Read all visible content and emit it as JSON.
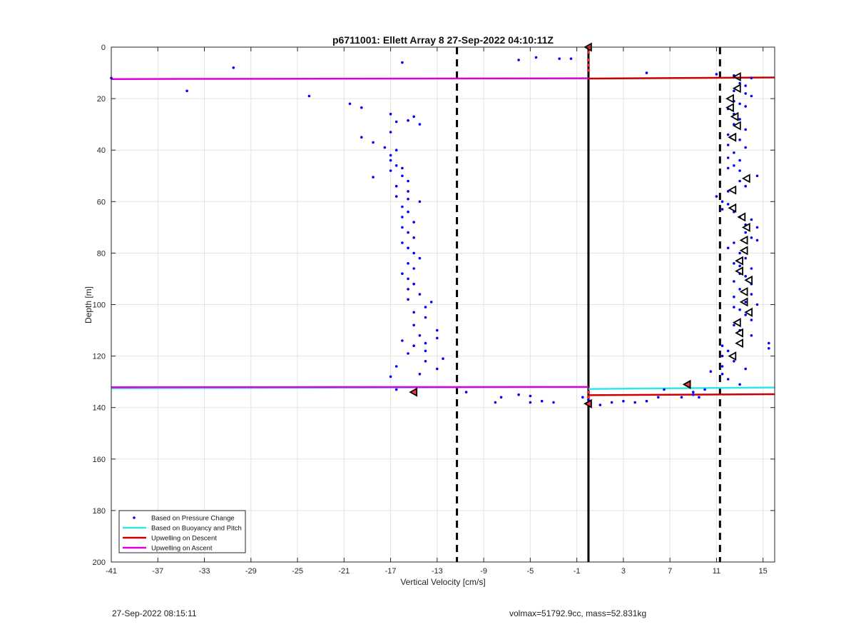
{
  "chart_data": {
    "type": "scatter",
    "title": "p6711001: Ellett Array 8 27-Sep-2022 04:10:11Z",
    "xlabel": "Vertical Velocity [cm/s]",
    "ylabel": "Depth [m]",
    "xlim": [
      -41,
      16
    ],
    "ylim": [
      0,
      200
    ],
    "y_reversed": true,
    "grid": true,
    "xticks": [
      -41,
      -37,
      -33,
      -29,
      -25,
      -21,
      -17,
      -13,
      -9,
      -5,
      -1,
      3,
      7,
      11,
      15
    ],
    "yticks": [
      0,
      20,
      40,
      60,
      80,
      100,
      120,
      140,
      160,
      180,
      200
    ],
    "legend_placement": "bottom-left",
    "legend": [
      {
        "label": "Based on Pressure Change",
        "style": "dots",
        "color": "#0000ff"
      },
      {
        "label": "Based on Buoyancy and Pitch",
        "style": "line",
        "color": "#33e6e6"
      },
      {
        "label": "Upwelling on Descent",
        "style": "line",
        "color": "#cc0000"
      },
      {
        "label": "Upwelling on Ascent",
        "style": "line",
        "color": "#dd00dd"
      }
    ],
    "vertical_lines": [
      {
        "x": 0,
        "style": "solid",
        "color": "#000000"
      },
      {
        "x": -11.3,
        "style": "dashed",
        "color": "#000000"
      },
      {
        "x": 11.3,
        "style": "dashed",
        "color": "#000000"
      }
    ],
    "series": [
      {
        "name": "Based on Pressure Change",
        "color": "#0000ff",
        "points": [
          [
            -41,
            12
          ],
          [
            -30.5,
            8
          ],
          [
            -34.5,
            17
          ],
          [
            -24,
            19
          ],
          [
            -16,
            6
          ],
          [
            -20.5,
            22
          ],
          [
            -19.5,
            23.5
          ],
          [
            -17,
            26
          ],
          [
            -15,
            27
          ],
          [
            -15.5,
            28.5
          ],
          [
            -14.5,
            30
          ],
          [
            -16.5,
            29
          ],
          [
            -17,
            33
          ],
          [
            -19.5,
            35
          ],
          [
            -18.5,
            37
          ],
          [
            -17.5,
            39
          ],
          [
            -16.5,
            40
          ],
          [
            -17,
            42
          ],
          [
            -17,
            44
          ],
          [
            -16.5,
            46
          ],
          [
            -16,
            47
          ],
          [
            -17,
            48
          ],
          [
            -18.5,
            50.5
          ],
          [
            -16,
            50
          ],
          [
            -15.5,
            52
          ],
          [
            -16.5,
            54
          ],
          [
            -15.5,
            56
          ],
          [
            -16.5,
            58
          ],
          [
            -14.5,
            60
          ],
          [
            -15.5,
            59
          ],
          [
            -16,
            62
          ],
          [
            -15.5,
            64
          ],
          [
            -16,
            66
          ],
          [
            -15,
            68
          ],
          [
            -16,
            70
          ],
          [
            -15.5,
            72
          ],
          [
            -15,
            74
          ],
          [
            -16,
            76
          ],
          [
            -15.5,
            78
          ],
          [
            -15,
            80
          ],
          [
            -14.5,
            82
          ],
          [
            -15.5,
            84
          ],
          [
            -15,
            86
          ],
          [
            -16,
            88
          ],
          [
            -15.5,
            90
          ],
          [
            -15,
            92
          ],
          [
            -15.5,
            94
          ],
          [
            -14.5,
            96
          ],
          [
            -15.5,
            98
          ],
          [
            -13.5,
            99
          ],
          [
            -14,
            101
          ],
          [
            -15,
            103
          ],
          [
            -14,
            105
          ],
          [
            -15,
            108
          ],
          [
            -13,
            110
          ],
          [
            -14.5,
            112
          ],
          [
            -16,
            114
          ],
          [
            -13,
            113
          ],
          [
            -14,
            115
          ],
          [
            -15,
            116
          ],
          [
            -14,
            118
          ],
          [
            -15.5,
            119
          ],
          [
            -12.5,
            121
          ],
          [
            -14,
            122
          ],
          [
            -16.5,
            124
          ],
          [
            -13,
            125
          ],
          [
            -14.5,
            127
          ],
          [
            -17,
            128
          ],
          [
            -16.5,
            133
          ],
          [
            -10.5,
            134
          ],
          [
            -8,
            138
          ],
          [
            -7.5,
            136
          ],
          [
            -6,
            135
          ],
          [
            -5,
            135.5
          ],
          [
            -5,
            138
          ],
          [
            -4,
            137.5
          ],
          [
            -3,
            138
          ],
          [
            -0.5,
            136
          ],
          [
            0,
            137
          ],
          [
            1,
            139
          ],
          [
            2,
            138
          ],
          [
            3,
            137.5
          ],
          [
            4,
            138
          ],
          [
            5,
            137.5
          ],
          [
            6,
            136
          ],
          [
            6.5,
            133
          ],
          [
            8,
            136
          ],
          [
            9,
            135
          ],
          [
            9.5,
            136
          ],
          [
            10,
            133
          ],
          [
            10.5,
            126
          ],
          [
            9,
            134
          ],
          [
            -6,
            5
          ],
          [
            -4.5,
            4
          ],
          [
            -2.5,
            4.5
          ],
          [
            -1.5,
            4.5
          ],
          [
            5,
            10
          ],
          [
            11,
            10.5
          ],
          [
            12.5,
            11
          ],
          [
            14,
            12
          ],
          [
            13,
            14
          ],
          [
            13.5,
            15
          ],
          [
            12.5,
            17
          ],
          [
            13.5,
            18
          ],
          [
            14,
            19
          ],
          [
            12.5,
            21
          ],
          [
            13,
            22
          ],
          [
            13.5,
            23
          ],
          [
            12,
            24
          ],
          [
            12.5,
            26
          ],
          [
            13,
            28
          ],
          [
            12.5,
            30
          ],
          [
            13.5,
            32
          ],
          [
            12,
            34
          ],
          [
            13,
            36
          ],
          [
            12,
            38
          ],
          [
            13.5,
            39
          ],
          [
            12.5,
            41
          ],
          [
            12,
            43
          ],
          [
            13,
            44
          ],
          [
            12.5,
            46
          ],
          [
            12,
            47
          ],
          [
            13,
            48
          ],
          [
            14.5,
            50
          ],
          [
            13,
            52
          ],
          [
            13.5,
            54
          ],
          [
            12,
            56
          ],
          [
            11,
            58
          ],
          [
            11.5,
            60
          ],
          [
            12,
            61
          ],
          [
            11.5,
            63
          ],
          [
            12.5,
            64
          ],
          [
            13,
            66
          ],
          [
            14,
            67
          ],
          [
            13.5,
            69
          ],
          [
            14.5,
            70
          ],
          [
            13.5,
            72
          ],
          [
            14,
            74
          ],
          [
            14.5,
            75
          ],
          [
            12.5,
            76
          ],
          [
            12,
            78
          ],
          [
            13,
            80
          ],
          [
            13.5,
            82
          ],
          [
            12.5,
            84
          ],
          [
            13,
            85
          ],
          [
            14,
            86
          ],
          [
            13,
            88
          ],
          [
            13.5,
            89
          ],
          [
            12.5,
            91
          ],
          [
            14,
            92
          ],
          [
            13,
            94
          ],
          [
            14,
            96
          ],
          [
            12.5,
            97
          ],
          [
            13.5,
            99
          ],
          [
            14.5,
            100
          ],
          [
            12.5,
            101
          ],
          [
            13,
            102
          ],
          [
            13.5,
            104
          ],
          [
            14,
            106
          ],
          [
            12.5,
            108
          ],
          [
            13,
            110
          ],
          [
            14,
            112
          ],
          [
            15.5,
            115
          ],
          [
            15.5,
            117
          ],
          [
            11.5,
            116
          ],
          [
            12,
            118
          ],
          [
            11.5,
            120
          ],
          [
            12.5,
            122
          ],
          [
            11.5,
            124
          ],
          [
            13.5,
            125
          ],
          [
            11.5,
            127
          ],
          [
            12,
            129
          ],
          [
            13,
            131
          ]
        ]
      },
      {
        "name": "Based on Buoyancy and Pitch",
        "color": "#33e6e6",
        "segments": [
          [
            [
              -41,
              132.5
            ],
            [
              -0.3,
              132
            ]
          ],
          [
            [
              0,
              132.8
            ],
            [
              16,
              132.2
            ]
          ]
        ]
      },
      {
        "name": "Upwelling on Descent",
        "color": "#cc0000",
        "segments": [
          [
            [
              0,
              12.2
            ],
            [
              16,
              11.8
            ]
          ],
          [
            [
              0,
              135.2
            ],
            [
              16,
              134.8
            ]
          ]
        ]
      },
      {
        "name": "Upwelling on Ascent",
        "color": "#dd00dd",
        "segments": [
          [
            [
              -41,
              12.4
            ],
            [
              0,
              12.1
            ]
          ],
          [
            [
              -41,
              132.1
            ],
            [
              0,
              132
            ]
          ]
        ]
      }
    ],
    "triangle_markers": [
      [
        0,
        0
      ],
      [
        12.8,
        11.5
      ],
      [
        12.8,
        16
      ],
      [
        12.2,
        20
      ],
      [
        12.2,
        23.5
      ],
      [
        12.6,
        27
      ],
      [
        12.8,
        30.5
      ],
      [
        12.4,
        35
      ],
      [
        13.6,
        51
      ],
      [
        12.4,
        55.5
      ],
      [
        12.4,
        62.5
      ],
      [
        13.2,
        66
      ],
      [
        13.6,
        70
      ],
      [
        13.4,
        75
      ],
      [
        13.4,
        79
      ],
      [
        13,
        83
      ],
      [
        13,
        87
      ],
      [
        13.8,
        90.5
      ],
      [
        13.4,
        95
      ],
      [
        13.4,
        99
      ],
      [
        13.8,
        103
      ],
      [
        12.8,
        107
      ],
      [
        13,
        111
      ],
      [
        13,
        115
      ],
      [
        12.4,
        120
      ],
      [
        8.5,
        131
      ],
      [
        -15,
        134
      ],
      [
        0,
        138.5
      ]
    ]
  },
  "footer": {
    "timestamp": "27-Sep-2022 08:15:11",
    "info": "volmax=51792.9cc, mass=52.831kg"
  }
}
